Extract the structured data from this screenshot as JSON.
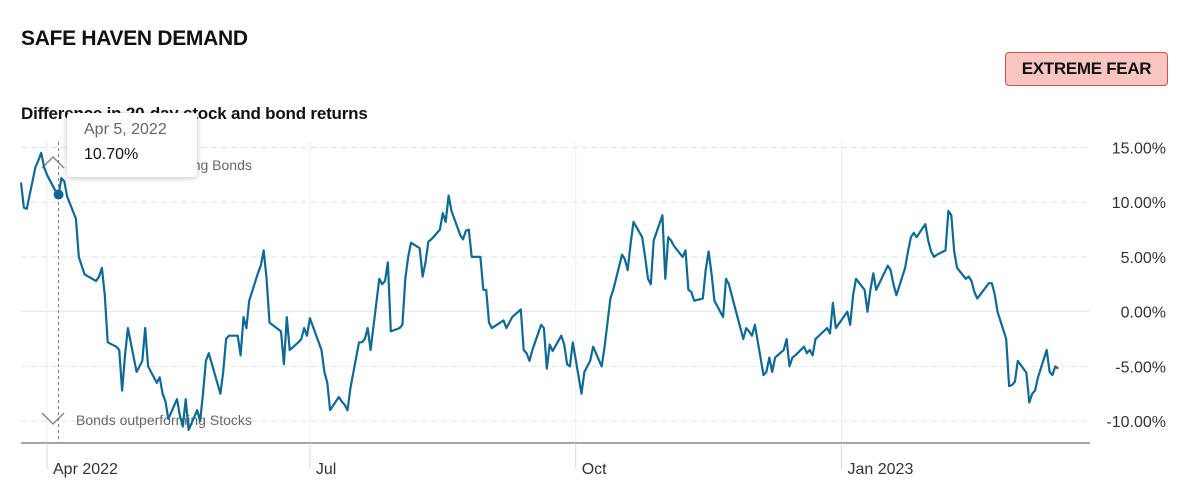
{
  "header": {
    "title": "SAFE HAVEN DEMAND",
    "rating": "EXTREME FEAR",
    "subtitle": "Difference in 20-day stock and bond returns"
  },
  "tooltip": {
    "date": "Apr 5, 2022",
    "value": "10.70%"
  },
  "colors": {
    "line": "#0e6a94",
    "badge_bg": "#f8c5c0",
    "badge_border": "#d05048",
    "grid": "#e4e4e4"
  },
  "chart_data": {
    "type": "line",
    "title": "SAFE HAVEN DEMAND",
    "subtitle": "Difference in 20-day stock and bond returns",
    "annotations": {
      "top": "Stocks outperforming Bonds",
      "bottom": "Bonds outperforming Stocks"
    },
    "ylim": [
      -12,
      15.5
    ],
    "yticks": [
      15,
      10,
      5,
      0,
      -5,
      -10
    ],
    "ytick_labels": [
      "15.00%",
      "10.00%",
      "5.00%",
      "0.00%",
      "-5.00%",
      "-10.00%"
    ],
    "xlim": [
      "2022-03-23",
      "2023-03-28"
    ],
    "xticks": [
      "2022-04-01",
      "2022-07-01",
      "2022-10-01",
      "2023-01-01"
    ],
    "xtick_labels": [
      "Apr 2022",
      "Jul",
      "Oct",
      "Jan 2023"
    ],
    "highlight": {
      "x": "2022-04-05",
      "y": 10.7
    },
    "series": [
      {
        "values": [
          [
            "2022-03-23",
            11.8
          ],
          [
            "2022-03-24",
            9.5
          ],
          [
            "2022-03-25",
            9.4
          ],
          [
            "2022-03-28",
            13.2
          ],
          [
            "2022-03-29",
            13.8
          ],
          [
            "2022-03-30",
            14.5
          ],
          [
            "2022-03-31",
            13.2
          ],
          [
            "2022-04-01",
            12.5
          ],
          [
            "2022-04-04",
            11.0
          ],
          [
            "2022-04-05",
            10.7
          ],
          [
            "2022-04-06",
            12.2
          ],
          [
            "2022-04-07",
            11.9
          ],
          [
            "2022-04-08",
            10.5
          ],
          [
            "2022-04-11",
            8.5
          ],
          [
            "2022-04-12",
            5.0
          ],
          [
            "2022-04-13",
            4.2
          ],
          [
            "2022-04-14",
            3.4
          ],
          [
            "2022-04-18",
            2.8
          ],
          [
            "2022-04-19",
            3.2
          ],
          [
            "2022-04-20",
            4.0
          ],
          [
            "2022-04-21",
            1.5
          ],
          [
            "2022-04-22",
            -2.8
          ],
          [
            "2022-04-25",
            -3.2
          ],
          [
            "2022-04-26",
            -3.5
          ],
          [
            "2022-04-27",
            -7.2
          ],
          [
            "2022-04-28",
            -4.0
          ],
          [
            "2022-04-29",
            -1.5
          ],
          [
            "2022-05-02",
            -5.5
          ],
          [
            "2022-05-03",
            -5.0
          ],
          [
            "2022-05-04",
            -4.5
          ],
          [
            "2022-05-05",
            -1.5
          ],
          [
            "2022-05-06",
            -5.0
          ],
          [
            "2022-05-09",
            -6.5
          ],
          [
            "2022-05-10",
            -6.0
          ],
          [
            "2022-05-11",
            -7.5
          ],
          [
            "2022-05-12",
            -8.2
          ],
          [
            "2022-05-13",
            -9.8
          ],
          [
            "2022-05-16",
            -8.0
          ],
          [
            "2022-05-17",
            -9.5
          ],
          [
            "2022-05-18",
            -10.5
          ],
          [
            "2022-05-19",
            -8.0
          ],
          [
            "2022-05-20",
            -10.8
          ],
          [
            "2022-05-23",
            -9.0
          ],
          [
            "2022-05-24",
            -10.0
          ],
          [
            "2022-05-25",
            -7.5
          ],
          [
            "2022-05-26",
            -4.5
          ],
          [
            "2022-05-27",
            -3.8
          ],
          [
            "2022-05-31",
            -7.5
          ],
          [
            "2022-06-01",
            -5.5
          ],
          [
            "2022-06-02",
            -2.5
          ],
          [
            "2022-06-03",
            -2.2
          ],
          [
            "2022-06-06",
            -2.2
          ],
          [
            "2022-06-07",
            -4.0
          ],
          [
            "2022-06-08",
            -0.5
          ],
          [
            "2022-06-09",
            -1.5
          ],
          [
            "2022-06-10",
            1.0
          ],
          [
            "2022-06-13",
            3.5
          ],
          [
            "2022-06-14",
            4.2
          ],
          [
            "2022-06-15",
            5.6
          ],
          [
            "2022-06-16",
            3.0
          ],
          [
            "2022-06-17",
            -1.0
          ],
          [
            "2022-06-21",
            -1.8
          ],
          [
            "2022-06-22",
            -4.8
          ],
          [
            "2022-06-23",
            -0.5
          ],
          [
            "2022-06-24",
            -3.5
          ],
          [
            "2022-06-27",
            -2.8
          ],
          [
            "2022-06-28",
            -2.5
          ],
          [
            "2022-06-29",
            -1.5
          ],
          [
            "2022-06-30",
            -2.2
          ],
          [
            "2022-07-01",
            -0.6
          ],
          [
            "2022-07-05",
            -3.5
          ],
          [
            "2022-07-06",
            -5.5
          ],
          [
            "2022-07-07",
            -6.5
          ],
          [
            "2022-07-08",
            -9.0
          ],
          [
            "2022-07-11",
            -7.8
          ],
          [
            "2022-07-12",
            -8.2
          ],
          [
            "2022-07-13",
            -8.5
          ],
          [
            "2022-07-14",
            -9.0
          ],
          [
            "2022-07-15",
            -7.0
          ],
          [
            "2022-07-18",
            -2.8
          ],
          [
            "2022-07-19",
            -2.8
          ],
          [
            "2022-07-20",
            -2.5
          ],
          [
            "2022-07-21",
            -1.5
          ],
          [
            "2022-07-22",
            -3.5
          ],
          [
            "2022-07-25",
            3.0
          ],
          [
            "2022-07-26",
            2.5
          ],
          [
            "2022-07-27",
            2.8
          ],
          [
            "2022-07-28",
            4.5
          ],
          [
            "2022-07-29",
            -1.8
          ],
          [
            "2022-08-01",
            -1.5
          ],
          [
            "2022-08-02",
            -1.2
          ],
          [
            "2022-08-03",
            3.0
          ],
          [
            "2022-08-04",
            5.0
          ],
          [
            "2022-08-05",
            6.3
          ],
          [
            "2022-08-08",
            5.8
          ],
          [
            "2022-08-09",
            3.2
          ],
          [
            "2022-08-10",
            4.5
          ],
          [
            "2022-08-11",
            6.4
          ],
          [
            "2022-08-12",
            6.6
          ],
          [
            "2022-08-15",
            7.5
          ],
          [
            "2022-08-16",
            9.0
          ],
          [
            "2022-08-17",
            8.2
          ],
          [
            "2022-08-18",
            10.6
          ],
          [
            "2022-08-19",
            9.2
          ],
          [
            "2022-08-22",
            7.0
          ],
          [
            "2022-08-23",
            6.6
          ],
          [
            "2022-08-24",
            7.4
          ],
          [
            "2022-08-25",
            7.5
          ],
          [
            "2022-08-26",
            5.0
          ],
          [
            "2022-08-29",
            5.0
          ],
          [
            "2022-08-30",
            2.0
          ],
          [
            "2022-08-31",
            2.0
          ],
          [
            "2022-09-01",
            -1.0
          ],
          [
            "2022-09-02",
            -1.5
          ],
          [
            "2022-09-06",
            -0.8
          ],
          [
            "2022-09-07",
            -1.5
          ],
          [
            "2022-09-08",
            -1.0
          ],
          [
            "2022-09-09",
            -0.5
          ],
          [
            "2022-09-12",
            0.2
          ],
          [
            "2022-09-13",
            -3.5
          ],
          [
            "2022-09-14",
            -3.8
          ],
          [
            "2022-09-15",
            -4.5
          ],
          [
            "2022-09-16",
            -3.5
          ],
          [
            "2022-09-19",
            -1.2
          ],
          [
            "2022-09-20",
            -1.5
          ],
          [
            "2022-09-21",
            -5.2
          ],
          [
            "2022-09-22",
            -3.0
          ],
          [
            "2022-09-23",
            -3.6
          ],
          [
            "2022-09-26",
            -2.2
          ],
          [
            "2022-09-27",
            -3.0
          ],
          [
            "2022-09-28",
            -4.8
          ],
          [
            "2022-09-29",
            -5.0
          ],
          [
            "2022-09-30",
            -2.8
          ],
          [
            "2022-10-03",
            -7.5
          ],
          [
            "2022-10-04",
            -5.5
          ],
          [
            "2022-10-05",
            -5.0
          ],
          [
            "2022-10-06",
            -4.5
          ],
          [
            "2022-10-07",
            -3.2
          ],
          [
            "2022-10-10",
            -5.0
          ],
          [
            "2022-10-11",
            -3.2
          ],
          [
            "2022-10-12",
            -1.0
          ],
          [
            "2022-10-13",
            1.2
          ],
          [
            "2022-10-14",
            2.0
          ],
          [
            "2022-10-17",
            5.2
          ],
          [
            "2022-10-18",
            4.8
          ],
          [
            "2022-10-19",
            3.8
          ],
          [
            "2022-10-20",
            6.2
          ],
          [
            "2022-10-21",
            8.2
          ],
          [
            "2022-10-24",
            6.8
          ],
          [
            "2022-10-25",
            5.0
          ],
          [
            "2022-10-26",
            3.0
          ],
          [
            "2022-10-27",
            2.5
          ],
          [
            "2022-10-28",
            6.5
          ],
          [
            "2022-10-31",
            8.8
          ],
          [
            "2022-11-01",
            3.0
          ],
          [
            "2022-11-02",
            6.8
          ],
          [
            "2022-11-03",
            6.5
          ],
          [
            "2022-11-04",
            6.0
          ],
          [
            "2022-11-07",
            5.0
          ],
          [
            "2022-11-08",
            5.6
          ],
          [
            "2022-11-09",
            2.0
          ],
          [
            "2022-11-10",
            1.8
          ],
          [
            "2022-11-11",
            1.0
          ],
          [
            "2022-11-14",
            1.2
          ],
          [
            "2022-11-15",
            3.8
          ],
          [
            "2022-11-16",
            5.5
          ],
          [
            "2022-11-17",
            3.5
          ],
          [
            "2022-11-18",
            1.0
          ],
          [
            "2022-11-21",
            -0.5
          ],
          [
            "2022-11-22",
            3.0
          ],
          [
            "2022-11-23",
            2.5
          ],
          [
            "2022-11-25",
            0.5
          ],
          [
            "2022-11-28",
            -2.5
          ],
          [
            "2022-11-29",
            -1.5
          ],
          [
            "2022-11-30",
            -1.8
          ],
          [
            "2022-12-01",
            -2.2
          ],
          [
            "2022-12-02",
            -1.2
          ],
          [
            "2022-12-05",
            -5.8
          ],
          [
            "2022-12-06",
            -5.5
          ],
          [
            "2022-12-07",
            -4.2
          ],
          [
            "2022-12-08",
            -5.5
          ],
          [
            "2022-12-09",
            -4.2
          ],
          [
            "2022-12-12",
            -3.5
          ],
          [
            "2022-12-13",
            -2.5
          ],
          [
            "2022-12-14",
            -5.0
          ],
          [
            "2022-12-15",
            -4.2
          ],
          [
            "2022-12-16",
            -4.0
          ],
          [
            "2022-12-19",
            -3.2
          ],
          [
            "2022-12-20",
            -3.8
          ],
          [
            "2022-12-21",
            -3.5
          ],
          [
            "2022-12-22",
            -4.0
          ],
          [
            "2022-12-23",
            -2.5
          ],
          [
            "2022-12-27",
            -1.5
          ],
          [
            "2022-12-28",
            -2.0
          ],
          [
            "2022-12-29",
            0.8
          ],
          [
            "2022-12-30",
            -1.5
          ],
          [
            "2023-01-03",
            0.0
          ],
          [
            "2023-01-04",
            -1.2
          ],
          [
            "2023-01-05",
            1.5
          ],
          [
            "2023-01-06",
            3.0
          ],
          [
            "2023-01-09",
            2.0
          ],
          [
            "2023-01-10",
            0.0
          ],
          [
            "2023-01-11",
            2.0
          ],
          [
            "2023-01-12",
            3.5
          ],
          [
            "2023-01-13",
            2.0
          ],
          [
            "2023-01-17",
            4.2
          ],
          [
            "2023-01-18",
            3.8
          ],
          [
            "2023-01-19",
            2.5
          ],
          [
            "2023-01-20",
            1.5
          ],
          [
            "2023-01-23",
            4.0
          ],
          [
            "2023-01-24",
            5.5
          ],
          [
            "2023-01-25",
            6.8
          ],
          [
            "2023-01-26",
            7.2
          ],
          [
            "2023-01-27",
            6.8
          ],
          [
            "2023-01-30",
            8.0
          ],
          [
            "2023-01-31",
            6.5
          ],
          [
            "2023-02-01",
            5.5
          ],
          [
            "2023-02-02",
            5.0
          ],
          [
            "2023-02-03",
            5.2
          ],
          [
            "2023-02-06",
            5.6
          ],
          [
            "2023-02-07",
            9.2
          ],
          [
            "2023-02-08",
            8.8
          ],
          [
            "2023-02-09",
            5.5
          ],
          [
            "2023-02-10",
            4.0
          ],
          [
            "2023-02-13",
            3.0
          ],
          [
            "2023-02-14",
            3.2
          ],
          [
            "2023-02-15",
            2.8
          ],
          [
            "2023-02-16",
            1.8
          ],
          [
            "2023-02-17",
            1.2
          ],
          [
            "2023-02-21",
            2.6
          ],
          [
            "2023-02-22",
            2.6
          ],
          [
            "2023-02-23",
            1.6
          ],
          [
            "2023-02-24",
            0.0
          ],
          [
            "2023-02-27",
            -2.5
          ],
          [
            "2023-02-28",
            -6.8
          ],
          [
            "2023-03-01",
            -6.7
          ],
          [
            "2023-03-02",
            -6.4
          ],
          [
            "2023-03-03",
            -4.5
          ],
          [
            "2023-03-06",
            -5.6
          ],
          [
            "2023-03-07",
            -8.3
          ],
          [
            "2023-03-08",
            -7.5
          ],
          [
            "2023-03-09",
            -7.2
          ],
          [
            "2023-03-10",
            -6.0
          ],
          [
            "2023-03-13",
            -3.5
          ],
          [
            "2023-03-14",
            -5.5
          ],
          [
            "2023-03-15",
            -5.8
          ],
          [
            "2023-03-16",
            -5.0
          ],
          [
            "2023-03-17",
            -5.2
          ]
        ]
      }
    ]
  }
}
